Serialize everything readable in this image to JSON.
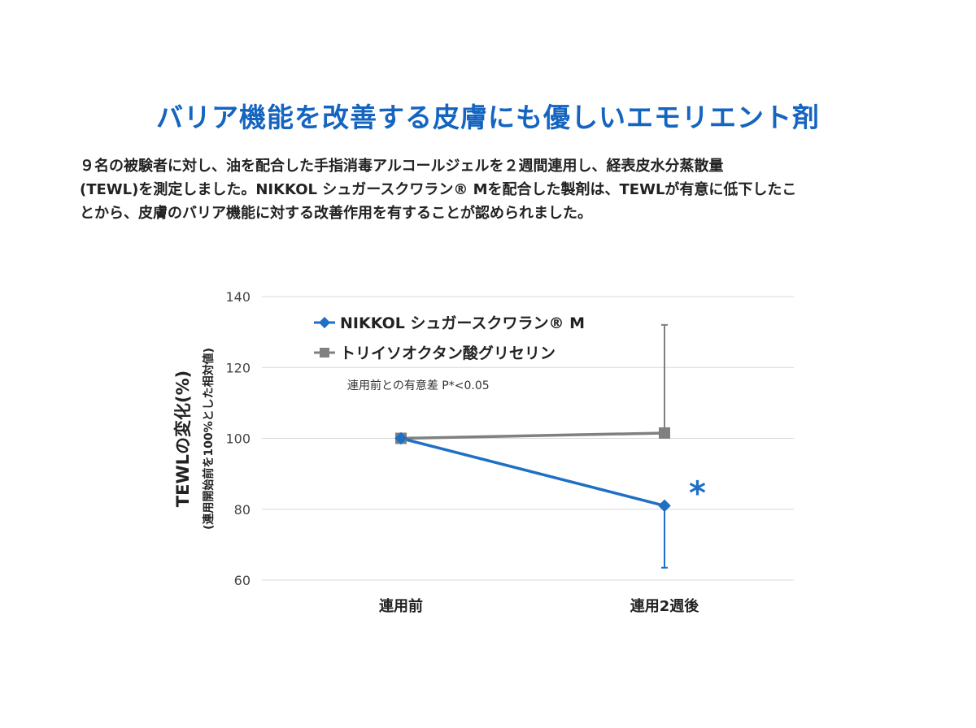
{
  "page": {
    "title": "バリア機能を改善する皮膚にも優しいエモリエント剤",
    "description_lines": [
      "９名の被験者に対し、油を配合した手指消毒アルコールジェルを２週間連用し、経表皮水分蒸散量",
      "(TEWL)を測定しました。NIKKOL シュガースクワラン® Mを配合した製剤は、TEWLが有意に低下したこ",
      "とから、皮膚のバリア機能に対する改善作用を有することが認められました。"
    ]
  },
  "chart_data": {
    "type": "line",
    "categories": [
      "連用前",
      "連用2週後"
    ],
    "ylabel": "TEWLの変化(%)",
    "ylabel_sub": "(連用開始前を100%とした相対値)",
    "ylim": [
      60,
      140
    ],
    "yticks": [
      60,
      80,
      100,
      120,
      140
    ],
    "grid": true,
    "legend_position": "top-left",
    "series": [
      {
        "name": "NIKKOL シュガースクワラン® M",
        "color": "#1f6fc5",
        "marker": "diamond",
        "values": [
          100,
          81
        ],
        "error_upper": [
          0,
          0
        ],
        "error_lower": [
          0,
          17.5
        ]
      },
      {
        "name": "トリイソオクタン酸グリセリン",
        "color": "#808080",
        "marker": "square",
        "values": [
          100,
          101.5
        ],
        "error_upper": [
          0,
          30.5
        ],
        "error_lower": [
          0,
          0
        ]
      }
    ],
    "annotation_note": "連用前との有意差 P*<0.05",
    "significance": {
      "series_index": 0,
      "category_index": 1,
      "symbol": "*"
    }
  }
}
